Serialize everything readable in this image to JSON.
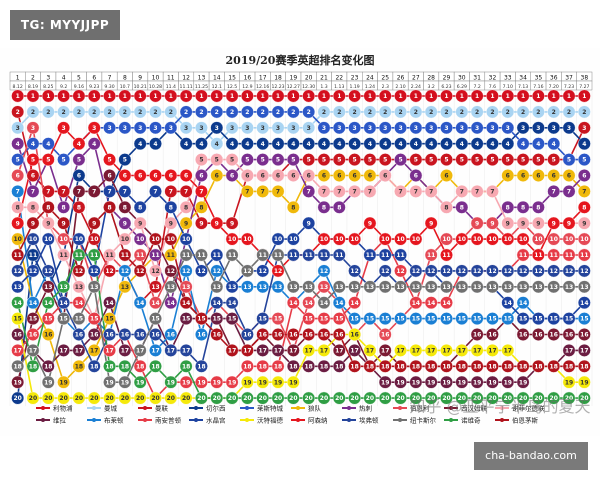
{
  "badge": "TG: MYYJJPP",
  "site": "cha-bandao.com",
  "watermark": "知乎 @亚平宁半岛的夏天",
  "chart_data": {
    "type": "line",
    "title": "2019/20赛季英超排名变化图",
    "rounds": [
      "1",
      "2",
      "3",
      "4",
      "5",
      "6",
      "7",
      "8",
      "9",
      "10",
      "11",
      "12",
      "13",
      "14",
      "15",
      "16",
      "17",
      "18",
      "19",
      "20",
      "21",
      "22",
      "23",
      "24",
      "25",
      "26",
      "27",
      "28",
      "29",
      "30",
      "31",
      "32",
      "33",
      "34",
      "35",
      "36",
      "37",
      "38"
    ],
    "dates": [
      "8.12",
      "8.19",
      "8.25",
      "9.2",
      "9.16",
      "9.23",
      "9.30",
      "10.7",
      "10.21",
      "10.28",
      "11.4",
      "11.11",
      "11.25",
      "12.1",
      "12.5",
      "12.9",
      "12.16",
      "12.23",
      "12.27",
      "12.30",
      "1.3",
      "1.13",
      "1.19",
      "1.24",
      "2.3",
      "2.10",
      "2.24",
      "3.2",
      "6.23",
      "6.29",
      "7.2",
      "7.6",
      "7.10",
      "7.13",
      "7.16",
      "7.20",
      "7.23",
      "7.27"
    ],
    "ranks": [
      1,
      2,
      3,
      4,
      5,
      6,
      7,
      8,
      9,
      10,
      11,
      12,
      13,
      14,
      15,
      16,
      17,
      18,
      19,
      20
    ],
    "series": [
      {
        "name": "利物浦",
        "color": "#d40f1e",
        "values": [
          1,
          1,
          1,
          1,
          1,
          1,
          1,
          1,
          1,
          1,
          1,
          1,
          1,
          1,
          1,
          1,
          1,
          1,
          1,
          1,
          1,
          1,
          1,
          1,
          1,
          1,
          1,
          1,
          1,
          1,
          1,
          1,
          1,
          1,
          1,
          1,
          1,
          1
        ]
      },
      {
        "name": "曼城",
        "color": "#a9d4f2",
        "values": [
          3,
          2,
          2,
          2,
          2,
          2,
          2,
          2,
          2,
          2,
          2,
          3,
          3,
          4,
          3,
          3,
          3,
          3,
          3,
          3,
          2,
          2,
          2,
          2,
          2,
          2,
          2,
          2,
          2,
          2,
          2,
          2,
          2,
          2,
          2,
          2,
          2,
          2
        ]
      },
      {
        "name": "曼联",
        "color": "#c9151f",
        "values": [
          2,
          6,
          7,
          7,
          8,
          10,
          12,
          12,
          14,
          13,
          7,
          7,
          9,
          9,
          9,
          6,
          6,
          6,
          5,
          5,
          5,
          5,
          5,
          5,
          5,
          5,
          5,
          5,
          5,
          5,
          5,
          5,
          5,
          5,
          5,
          5,
          5,
          3
        ]
      },
      {
        "name": "切尔西",
        "color": "#0c3a8d",
        "values": [
          20,
          11,
          13,
          11,
          6,
          7,
          7,
          5,
          4,
          4,
          3,
          4,
          4,
          3,
          4,
          4,
          4,
          4,
          4,
          4,
          4,
          4,
          4,
          4,
          4,
          4,
          4,
          4,
          4,
          4,
          4,
          4,
          4,
          3,
          3,
          3,
          3,
          4
        ]
      },
      {
        "name": "莱斯特城",
        "color": "#2b57c7",
        "values": [
          5,
          4,
          4,
          5,
          4,
          3,
          3,
          3,
          3,
          3,
          3,
          2,
          2,
          2,
          2,
          2,
          2,
          2,
          2,
          2,
          3,
          3,
          3,
          3,
          3,
          3,
          3,
          3,
          3,
          3,
          3,
          3,
          3,
          4,
          4,
          4,
          5,
          5
        ]
      },
      {
        "name": "狼队",
        "color": "#f0b90b",
        "values": [
          10,
          14,
          16,
          19,
          18,
          17,
          15,
          13,
          12,
          11,
          11,
          9,
          8,
          6,
          6,
          7,
          7,
          7,
          8,
          6,
          6,
          6,
          6,
          6,
          6,
          7,
          6,
          7,
          6,
          7,
          7,
          7,
          6,
          6,
          6,
          6,
          6,
          7
        ]
      },
      {
        "name": "热刺",
        "color": "#7a2e8e",
        "values": [
          4,
          7,
          5,
          8,
          5,
          4,
          8,
          9,
          10,
          11,
          14,
          10,
          6,
          5,
          6,
          5,
          5,
          5,
          5,
          7,
          8,
          8,
          7,
          7,
          6,
          5,
          6,
          7,
          8,
          8,
          9,
          9,
          8,
          8,
          8,
          7,
          7,
          6
        ]
      },
      {
        "name": "伯恩利",
        "color": "#e54955",
        "values": [
          6,
          3,
          9,
          10,
          10,
          13,
          11,
          12,
          11,
          14,
          12,
          13,
          15,
          14,
          15,
          16,
          15,
          15,
          17,
          14,
          13,
          14,
          16,
          15,
          16,
          15,
          14,
          11,
          10,
          10,
          9,
          9,
          10,
          9,
          10,
          10,
          10,
          10
        ]
      },
      {
        "name": "西汉姆联",
        "color": "#7b1a33",
        "values": [
          19,
          15,
          13,
          15,
          7,
          7,
          6,
          8,
          9,
          10,
          12,
          14,
          15,
          15,
          17,
          17,
          16,
          17,
          17,
          16,
          16,
          17,
          16,
          18,
          17,
          18,
          18,
          18,
          18,
          17,
          16,
          16,
          15,
          16,
          16,
          16,
          16,
          16
        ]
      },
      {
        "name": "谢菲尔德联",
        "color": "#f7a8b1",
        "values": [
          8,
          8,
          9,
          11,
          13,
          15,
          11,
          10,
          9,
          12,
          9,
          8,
          5,
          5,
          5,
          6,
          6,
          6,
          6,
          6,
          7,
          7,
          7,
          7,
          6,
          7,
          7,
          7,
          8,
          7,
          7,
          7,
          9,
          9,
          9,
          9,
          9,
          9
        ]
      },
      {
        "name": "维拉",
        "color": "#6b1d42",
        "values": [
          16,
          17,
          18,
          17,
          17,
          16,
          14,
          17,
          17,
          15,
          17,
          15,
          15,
          15,
          15,
          17,
          17,
          17,
          18,
          18,
          18,
          18,
          17,
          18,
          19,
          19,
          19,
          19,
          19,
          19,
          19,
          19,
          19,
          19,
          18,
          18,
          17,
          17
        ]
      },
      {
        "name": "布莱顿",
        "color": "#1a7fd4",
        "values": [
          7,
          14,
          12,
          15,
          16,
          15,
          16,
          12,
          14,
          17,
          16,
          12,
          16,
          12,
          13,
          13,
          13,
          13,
          14,
          13,
          12,
          14,
          15,
          15,
          15,
          15,
          15,
          15,
          15,
          15,
          15,
          15,
          15,
          14,
          15,
          15,
          15,
          15
        ]
      },
      {
        "name": "南安普顿",
        "color": "#e63b47",
        "values": [
          17,
          16,
          15,
          14,
          14,
          15,
          17,
          16,
          18,
          20,
          19,
          19,
          19,
          19,
          19,
          18,
          18,
          18,
          14,
          15,
          15,
          15,
          14,
          11,
          10,
          12,
          14,
          14,
          14,
          12,
          12,
          12,
          12,
          11,
          11,
          11,
          11,
          11
        ]
      },
      {
        "name": "水晶宫",
        "color": "#1d42a0",
        "values": [
          13,
          12,
          10,
          14,
          10,
          12,
          7,
          7,
          8,
          7,
          8,
          10,
          12,
          11,
          13,
          12,
          12,
          10,
          10,
          9,
          10,
          10,
          10,
          11,
          11,
          11,
          12,
          12,
          13,
          13,
          13,
          13,
          14,
          15,
          15,
          15,
          15,
          14
        ]
      },
      {
        "name": "沃特福德",
        "color": "#f5e90a",
        "values": [
          15,
          20,
          20,
          20,
          20,
          20,
          20,
          20,
          20,
          20,
          20,
          20,
          20,
          20,
          20,
          19,
          19,
          19,
          19,
          17,
          17,
          16,
          16,
          17,
          18,
          17,
          17,
          17,
          17,
          17,
          17,
          17,
          17,
          18,
          18,
          18,
          19,
          19
        ]
      },
      {
        "name": "阿森纳",
        "color": "#e5161e",
        "values": [
          9,
          5,
          5,
          3,
          4,
          3,
          5,
          6,
          6,
          6,
          6,
          6,
          7,
          9,
          10,
          10,
          11,
          12,
          11,
          11,
          10,
          10,
          10,
          9,
          10,
          10,
          10,
          9,
          11,
          10,
          10,
          10,
          10,
          10,
          11,
          9,
          9,
          8
        ]
      },
      {
        "name": "埃弗顿",
        "color": "#24449b",
        "values": [
          12,
          10,
          12,
          14,
          16,
          18,
          16,
          16,
          16,
          16,
          17,
          17,
          18,
          14,
          14,
          16,
          15,
          11,
          11,
          11,
          11,
          11,
          12,
          13,
          12,
          13,
          12,
          12,
          12,
          12,
          12,
          12,
          12,
          12,
          12,
          12,
          12,
          12
        ]
      },
      {
        "name": "纽卡斯尔",
        "color": "#707070",
        "values": [
          18,
          17,
          19,
          15,
          15,
          13,
          19,
          19,
          17,
          15,
          13,
          11,
          11,
          13,
          11,
          12,
          11,
          11,
          13,
          13,
          14,
          13,
          13,
          13,
          13,
          13,
          13,
          13,
          13,
          13,
          13,
          13,
          13,
          13,
          13,
          13,
          13,
          13
        ]
      },
      {
        "name": "诺维奇",
        "color": "#2f9e44",
        "values": [
          14,
          18,
          14,
          13,
          11,
          11,
          18,
          18,
          19,
          18,
          19,
          18,
          20,
          20,
          20,
          20,
          20,
          20,
          20,
          20,
          20,
          20,
          20,
          20,
          20,
          20,
          20,
          20,
          20,
          20,
          20,
          20,
          20,
          20,
          20,
          20,
          20,
          20
        ]
      },
      {
        "name": "伯恩茅斯",
        "color": "#b0131c",
        "values": [
          11,
          9,
          8,
          9,
          12,
          9,
          8,
          11,
          12,
          10,
          10,
          14,
          15,
          16,
          17,
          17,
          16,
          16,
          16,
          16,
          16,
          16,
          18,
          18,
          18,
          18,
          18,
          18,
          18,
          18,
          18,
          18,
          18,
          18,
          18,
          18,
          18,
          18
        ]
      }
    ]
  }
}
